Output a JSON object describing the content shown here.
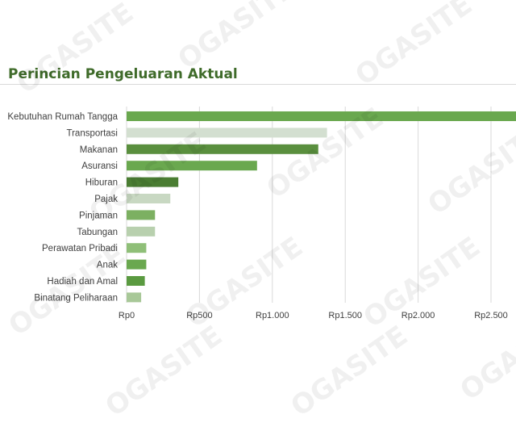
{
  "chart_data": {
    "type": "bar",
    "orientation": "horizontal",
    "title": "Perincian Pengeluaran Aktual",
    "categories": [
      "Kebutuhan Rumah Tangga",
      "Transportasi",
      "Makanan",
      "Asuransi",
      "Hiburan",
      "Pajak",
      "Pinjaman",
      "Tabungan",
      "Perawatan Pribadi",
      "Anak",
      "Hadiah dan Amal",
      "Binatang Peliharaan"
    ],
    "values": [
      2700,
      1375,
      1315,
      895,
      355,
      300,
      195,
      195,
      135,
      135,
      125,
      100
    ],
    "xlim": [
      0,
      2650
    ],
    "xticks": [
      0,
      500,
      1000,
      1500,
      2000,
      2500
    ],
    "xtick_labels": [
      "Rp0",
      "Rp500",
      "Rp1.000",
      "Rp1.500",
      "Rp2.000",
      "Rp2.500"
    ],
    "xlabel": "",
    "ylabel": "",
    "grid": "vertical",
    "legend": "none",
    "colors": [
      "#6aa84f",
      "#d3dfd0",
      "#5a8f3e",
      "#6aa84f",
      "#4a7d32",
      "#c8d8c2",
      "#7cb061",
      "#b8d0ae",
      "#8fbf78",
      "#6aa84f",
      "#5a9a40",
      "#a8c898"
    ]
  },
  "watermark": "OGASITE"
}
